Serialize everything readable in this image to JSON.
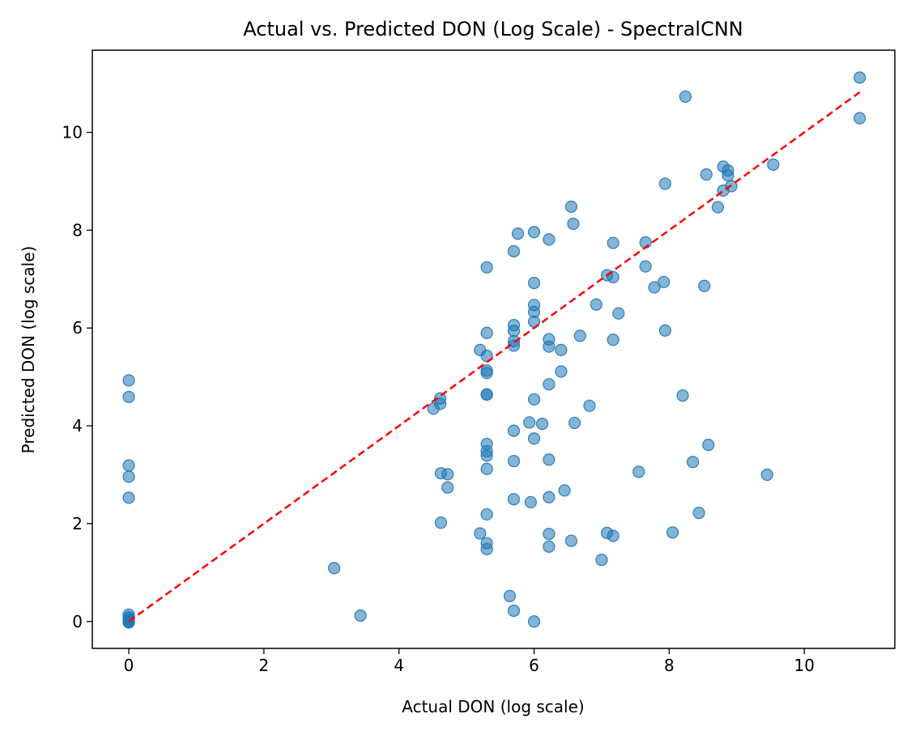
{
  "chart_data": {
    "type": "scatter",
    "title": "Actual vs. Predicted DON (Log Scale) - SpectralCNN",
    "xlabel": "Actual DON (log scale)",
    "ylabel": "Predicted DON (log scale)",
    "xlim": [
      -0.54,
      11.34
    ],
    "ylim": [
      -0.55,
      11.68
    ],
    "xticks": [
      0,
      2,
      4,
      6,
      8,
      10
    ],
    "yticks": [
      0,
      2,
      4,
      6,
      8,
      10
    ],
    "grid": false,
    "point_color": "#1f77b4",
    "point_alpha": 0.55,
    "reference_line": {
      "x": [
        0,
        10.82
      ],
      "y": [
        0,
        10.82
      ],
      "color": "#ff0000",
      "style": "dashed"
    },
    "points": [
      {
        "x": 0.0,
        "y": 4.93
      },
      {
        "x": 0.0,
        "y": 4.59
      },
      {
        "x": 0.0,
        "y": 3.19
      },
      {
        "x": 0.0,
        "y": 2.96
      },
      {
        "x": 0.0,
        "y": 2.53
      },
      {
        "x": 0.0,
        "y": 0.14
      },
      {
        "x": 0.0,
        "y": 0.09
      },
      {
        "x": 0.0,
        "y": 0.05
      },
      {
        "x": 0.0,
        "y": 0.02
      },
      {
        "x": 0.0,
        "y": 0.0
      },
      {
        "x": 0.0,
        "y": -0.02
      },
      {
        "x": 3.04,
        "y": 1.09
      },
      {
        "x": 3.43,
        "y": 0.12
      },
      {
        "x": 4.51,
        "y": 4.35
      },
      {
        "x": 4.61,
        "y": 4.45
      },
      {
        "x": 4.61,
        "y": 4.56
      },
      {
        "x": 4.62,
        "y": 3.03
      },
      {
        "x": 4.62,
        "y": 2.02
      },
      {
        "x": 4.72,
        "y": 3.01
      },
      {
        "x": 4.72,
        "y": 2.74
      },
      {
        "x": 5.2,
        "y": 5.55
      },
      {
        "x": 5.2,
        "y": 1.8
      },
      {
        "x": 5.3,
        "y": 7.24
      },
      {
        "x": 5.3,
        "y": 5.9
      },
      {
        "x": 5.3,
        "y": 5.43
      },
      {
        "x": 5.3,
        "y": 5.13
      },
      {
        "x": 5.3,
        "y": 5.08
      },
      {
        "x": 5.3,
        "y": 4.64
      },
      {
        "x": 5.3,
        "y": 4.64
      },
      {
        "x": 5.3,
        "y": 3.63
      },
      {
        "x": 5.3,
        "y": 3.48
      },
      {
        "x": 5.3,
        "y": 3.39
      },
      {
        "x": 5.3,
        "y": 3.12
      },
      {
        "x": 5.3,
        "y": 2.19
      },
      {
        "x": 5.3,
        "y": 1.6
      },
      {
        "x": 5.3,
        "y": 1.48
      },
      {
        "x": 5.64,
        "y": 0.52
      },
      {
        "x": 5.7,
        "y": 0.22
      },
      {
        "x": 5.7,
        "y": 7.57
      },
      {
        "x": 5.7,
        "y": 6.06
      },
      {
        "x": 5.7,
        "y": 5.94
      },
      {
        "x": 5.7,
        "y": 5.73
      },
      {
        "x": 5.7,
        "y": 5.64
      },
      {
        "x": 5.7,
        "y": 3.9
      },
      {
        "x": 5.7,
        "y": 3.28
      },
      {
        "x": 5.7,
        "y": 2.5
      },
      {
        "x": 5.76,
        "y": 7.93
      },
      {
        "x": 5.93,
        "y": 4.07
      },
      {
        "x": 5.95,
        "y": 2.44
      },
      {
        "x": 6.0,
        "y": 7.96
      },
      {
        "x": 6.0,
        "y": 6.92
      },
      {
        "x": 6.0,
        "y": 6.47
      },
      {
        "x": 6.0,
        "y": 6.33
      },
      {
        "x": 6.0,
        "y": 6.13
      },
      {
        "x": 6.0,
        "y": 4.54
      },
      {
        "x": 6.0,
        "y": 3.74
      },
      {
        "x": 6.0,
        "y": 0.0
      },
      {
        "x": 6.12,
        "y": 4.04
      },
      {
        "x": 6.22,
        "y": 7.81
      },
      {
        "x": 6.22,
        "y": 5.77
      },
      {
        "x": 6.22,
        "y": 5.62
      },
      {
        "x": 6.22,
        "y": 4.85
      },
      {
        "x": 6.22,
        "y": 3.31
      },
      {
        "x": 6.22,
        "y": 2.54
      },
      {
        "x": 6.22,
        "y": 1.79
      },
      {
        "x": 6.22,
        "y": 1.53
      },
      {
        "x": 6.4,
        "y": 5.55
      },
      {
        "x": 6.4,
        "y": 5.11
      },
      {
        "x": 6.45,
        "y": 2.68
      },
      {
        "x": 6.55,
        "y": 8.48
      },
      {
        "x": 6.55,
        "y": 1.65
      },
      {
        "x": 6.58,
        "y": 8.13
      },
      {
        "x": 6.6,
        "y": 4.06
      },
      {
        "x": 6.68,
        "y": 5.84
      },
      {
        "x": 6.82,
        "y": 4.41
      },
      {
        "x": 6.92,
        "y": 6.48
      },
      {
        "x": 7.0,
        "y": 1.26
      },
      {
        "x": 7.08,
        "y": 7.08
      },
      {
        "x": 7.08,
        "y": 1.81
      },
      {
        "x": 7.17,
        "y": 7.74
      },
      {
        "x": 7.17,
        "y": 7.04
      },
      {
        "x": 7.17,
        "y": 5.76
      },
      {
        "x": 7.17,
        "y": 1.75
      },
      {
        "x": 7.25,
        "y": 6.3
      },
      {
        "x": 7.55,
        "y": 3.06
      },
      {
        "x": 7.65,
        "y": 7.75
      },
      {
        "x": 7.65,
        "y": 7.26
      },
      {
        "x": 7.78,
        "y": 6.83
      },
      {
        "x": 7.92,
        "y": 6.94
      },
      {
        "x": 7.94,
        "y": 8.95
      },
      {
        "x": 7.94,
        "y": 5.95
      },
      {
        "x": 8.05,
        "y": 1.82
      },
      {
        "x": 8.2,
        "y": 4.62
      },
      {
        "x": 8.24,
        "y": 10.73
      },
      {
        "x": 8.35,
        "y": 3.26
      },
      {
        "x": 8.44,
        "y": 2.22
      },
      {
        "x": 8.52,
        "y": 6.86
      },
      {
        "x": 8.55,
        "y": 9.14
      },
      {
        "x": 8.58,
        "y": 3.61
      },
      {
        "x": 8.72,
        "y": 8.47
      },
      {
        "x": 8.8,
        "y": 9.3
      },
      {
        "x": 8.8,
        "y": 8.81
      },
      {
        "x": 8.87,
        "y": 9.22
      },
      {
        "x": 8.87,
        "y": 9.12
      },
      {
        "x": 8.92,
        "y": 8.9
      },
      {
        "x": 9.45,
        "y": 3.0
      },
      {
        "x": 9.54,
        "y": 9.34
      },
      {
        "x": 10.82,
        "y": 11.12
      },
      {
        "x": 10.82,
        "y": 10.29
      }
    ]
  }
}
